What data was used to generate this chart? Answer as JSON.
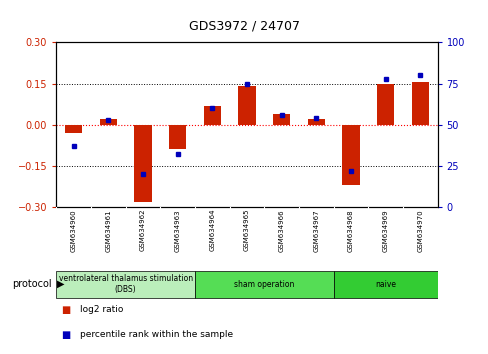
{
  "title": "GDS3972 / 24707",
  "samples": [
    "GSM634960",
    "GSM634961",
    "GSM634962",
    "GSM634963",
    "GSM634964",
    "GSM634965",
    "GSM634966",
    "GSM634967",
    "GSM634968",
    "GSM634969",
    "GSM634970"
  ],
  "log2_ratio": [
    -0.03,
    0.02,
    -0.28,
    -0.09,
    0.07,
    0.14,
    0.04,
    0.02,
    -0.22,
    0.15,
    0.155
  ],
  "percentile_rank": [
    37,
    53,
    20,
    32,
    60,
    75,
    56,
    54,
    22,
    78,
    80
  ],
  "groups": [
    {
      "label": "ventrolateral thalamus stimulation\n(DBS)",
      "start": 0,
      "end": 3,
      "color": "#bbeebb"
    },
    {
      "label": "sham operation",
      "start": 4,
      "end": 7,
      "color": "#55dd55"
    },
    {
      "label": "naive",
      "start": 8,
      "end": 10,
      "color": "#33cc33"
    }
  ],
  "ylim_left": [
    -0.3,
    0.3
  ],
  "ylim_right": [
    0,
    100
  ],
  "yticks_left": [
    -0.3,
    -0.15,
    0,
    0.15,
    0.3
  ],
  "yticks_right": [
    0,
    25,
    50,
    75,
    100
  ],
  "bar_color": "#cc2200",
  "dot_color": "#0000bb",
  "bg_color": "#ffffff",
  "sample_bg": "#cccccc",
  "legend_items": [
    "log2 ratio",
    "percentile rank within the sample"
  ],
  "protocol_label": "protocol"
}
